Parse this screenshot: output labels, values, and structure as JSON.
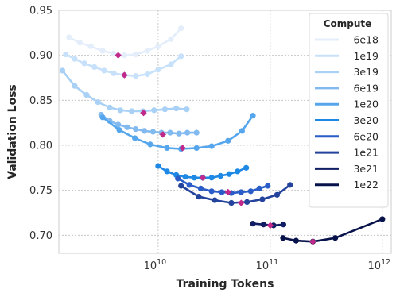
{
  "chart_data": {
    "type": "scatter",
    "xlabel": "Training Tokens",
    "ylabel": "Validation Loss",
    "xscale": "log",
    "xlim": [
      1300000000.0,
      1200000000000.0
    ],
    "ylim": [
      0.68,
      0.95
    ],
    "x_ticks": [
      {
        "value": 10000000000.0,
        "base": "10",
        "exp": "10"
      },
      {
        "value": 100000000000.0,
        "base": "10",
        "exp": "11"
      },
      {
        "value": 1000000000000.0,
        "base": "10",
        "exp": "12"
      }
    ],
    "y_ticks": [
      {
        "value": 0.7,
        "label": "0.70"
      },
      {
        "value": 0.75,
        "label": "0.75"
      },
      {
        "value": 0.8,
        "label": "0.80"
      },
      {
        "value": 0.85,
        "label": "0.85"
      },
      {
        "value": 0.9,
        "label": "0.90"
      },
      {
        "value": 0.95,
        "label": "0.95"
      }
    ],
    "grid": true,
    "legend": {
      "title": "Compute",
      "placement": "top-right"
    },
    "optimum_marker_color": "#c0288a",
    "series": [
      {
        "name": "6e18",
        "color": "#e4eefb",
        "x": [
          1600000000.0,
          2000000000.0,
          2500000000.0,
          3200000000.0,
          4000000000.0,
          5000000000.0,
          6300000000.0,
          8000000000.0,
          10000000000.0,
          13000000000.0,
          16000000000.0
        ],
        "y": [
          0.92,
          0.914,
          0.91,
          0.905,
          0.902,
          0.9,
          0.901,
          0.905,
          0.91,
          0.918,
          0.93
        ],
        "opt": [
          4400000000.0,
          0.9
        ]
      },
      {
        "name": "1e19",
        "color": "#c8e1fa",
        "x": [
          1500000000.0,
          1800000000.0,
          2200000000.0,
          2700000000.0,
          3300000000.0,
          4000000000.0,
          5000000000.0,
          6300000000.0,
          8000000000.0,
          10000000000.0,
          13000000000.0,
          16000000000.0
        ],
        "y": [
          0.901,
          0.896,
          0.891,
          0.887,
          0.883,
          0.88,
          0.878,
          0.877,
          0.879,
          0.884,
          0.89,
          0.899
        ],
        "opt": [
          5000000000.0,
          0.878
        ]
      },
      {
        "name": "3e19",
        "color": "#a9d0f5",
        "x": [
          1400000000.0,
          1800000000.0,
          2300000000.0,
          2900000000.0,
          3700000000.0,
          4600000000.0,
          5800000000.0,
          7300000000.0,
          9200000000.0,
          11500000000.0,
          14500000000.0,
          18000000000.0
        ],
        "y": [
          0.883,
          0.866,
          0.856,
          0.848,
          0.842,
          0.839,
          0.838,
          0.838,
          0.839,
          0.84,
          0.841,
          0.84
        ],
        "opt": [
          7400000000.0,
          0.836
        ]
      },
      {
        "name": "6e19",
        "color": "#82b9ef",
        "x": [
          3100000000.0,
          3700000000.0,
          4400000000.0,
          5300000000.0,
          6300000000.0,
          7500000000.0,
          9000000000.0,
          10700000000.0,
          12800000000.0,
          15300000000.0,
          18200000000.0,
          22000000000.0
        ],
        "y": [
          0.834,
          0.827,
          0.823,
          0.82,
          0.818,
          0.816,
          0.815,
          0.814,
          0.814,
          0.813,
          0.814,
          0.814
        ],
        "opt": [
          11000000000.0,
          0.812
        ]
      },
      {
        "name": "1e20",
        "color": "#55a6ec",
        "x": [
          3200000000.0,
          4500000000.0,
          6200000000.0,
          8500000000.0,
          12000000000.0,
          16000000000.0,
          22000000000.0,
          30000000000.0,
          42000000000.0,
          56000000000.0,
          70000000000.0
        ],
        "y": [
          0.831,
          0.817,
          0.808,
          0.801,
          0.797,
          0.796,
          0.797,
          0.799,
          0.805,
          0.816,
          0.833
        ],
        "opt": [
          16500000000.0,
          0.797
        ]
      },
      {
        "name": "3e20",
        "color": "#1e88e5",
        "x": [
          10000000000.0,
          12000000000.0,
          14500000000.0,
          17500000000.0,
          21000000000.0,
          25000000000.0,
          30000000000.0,
          36000000000.0,
          43000000000.0,
          51000000000.0,
          61000000000.0
        ],
        "y": [
          0.777,
          0.771,
          0.767,
          0.765,
          0.764,
          0.764,
          0.764,
          0.766,
          0.768,
          0.771,
          0.775
        ],
        "opt": [
          25000000000.0,
          0.764
        ]
      },
      {
        "name": "6e20",
        "color": "#2a5dc7",
        "x": [
          15000000000.0,
          19000000000.0,
          24000000000.0,
          30000000000.0,
          37000000000.0,
          45000000000.0,
          55000000000.0,
          67000000000.0,
          80000000000.0,
          95000000000.0
        ],
        "y": [
          0.763,
          0.756,
          0.752,
          0.749,
          0.748,
          0.747,
          0.748,
          0.749,
          0.752,
          0.755
        ],
        "opt": [
          42000000000.0,
          0.748
        ]
      },
      {
        "name": "1e21",
        "color": "#24439c",
        "x": [
          16000000000.0,
          23000000000.0,
          32000000000.0,
          45000000000.0,
          62000000000.0,
          85000000000.0,
          115000000000.0,
          150000000000.0
        ],
        "y": [
          0.755,
          0.743,
          0.739,
          0.736,
          0.737,
          0.74,
          0.745,
          0.756
        ],
        "opt": [
          55000000000.0,
          0.736
        ]
      },
      {
        "name": "3e21",
        "color": "#111e63",
        "x": [
          70000000000.0,
          87000000000.0,
          107000000000.0,
          131000000000.0
        ],
        "y": [
          0.713,
          0.712,
          0.711,
          0.712
        ],
        "opt": [
          100000000000.0,
          0.711
        ]
      },
      {
        "name": "1e22",
        "color": "#08124a",
        "x": [
          130000000000.0,
          170000000000.0,
          240000000000.0,
          380000000000.0,
          1000000000000.0
        ],
        "y": [
          0.697,
          0.694,
          0.693,
          0.697,
          0.718
        ],
        "opt": [
          240000000000.0,
          0.693
        ]
      }
    ]
  }
}
